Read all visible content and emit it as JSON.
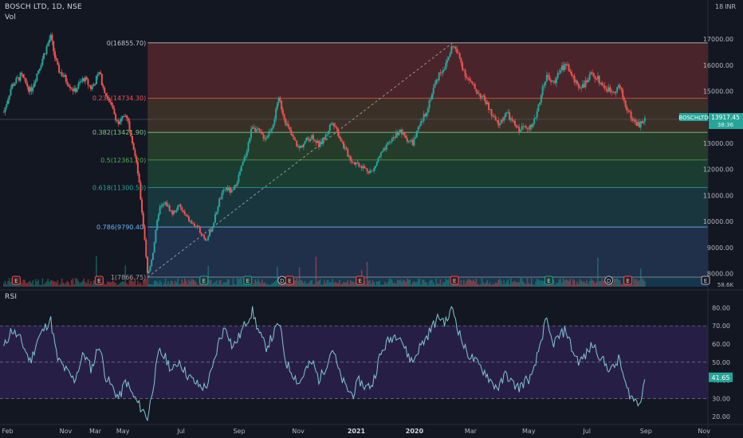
{
  "header": {
    "symbol": "BOSCH LTD, 1D, NSE",
    "vol_label": "Vol",
    "currency": "INR",
    "top_label": "18"
  },
  "rsi_label": "RSI",
  "colors": {
    "bg": "#131722",
    "up": "#26a69a",
    "down": "#ef5350",
    "rsi_line": "#7ec8d6",
    "rsi_band": "#2a1f4a",
    "grid_text": "#b2b5be"
  },
  "price_badge": {
    "symbol": "BOSCHLTD",
    "value": "13917.45",
    "timer": "38:36"
  },
  "rsi_badge": {
    "value": "41.65"
  },
  "volume_badge": "58.6K",
  "chart_data": [
    {
      "type": "candlestick",
      "title": "BOSCH LTD, 1D, NSE",
      "y_axis": {
        "ticks": [
          8000,
          9000,
          10000,
          11000,
          12000,
          13000,
          14000,
          15000,
          16000,
          17000
        ],
        "range": [
          7500,
          17950
        ]
      },
      "x_axis": {
        "ticks": [
          "Nov",
          "2020",
          "Feb",
          "Mar",
          "May",
          "Jul",
          "Sep",
          "Nov",
          "2021",
          "Mar",
          "May",
          "Jul",
          "Sep",
          "Nov"
        ]
      },
      "price_path": [
        [
          "2019-10-28",
          14200
        ],
        [
          "2019-11-05",
          15200
        ],
        [
          "2019-11-15",
          15600
        ],
        [
          "2019-11-25",
          15000
        ],
        [
          "2019-12-02",
          15700
        ],
        [
          "2019-12-09",
          16400
        ],
        [
          "2019-12-16",
          17100
        ],
        [
          "2019-12-23",
          15900
        ],
        [
          "2020-01-02",
          15400
        ],
        [
          "2020-01-10",
          15000
        ],
        [
          "2020-01-20",
          15500
        ],
        [
          "2020-01-28",
          15100
        ],
        [
          "2020-02-05",
          15700
        ],
        [
          "2020-02-12",
          14900
        ],
        [
          "2020-02-19",
          14300
        ],
        [
          "2020-02-26",
          13700
        ],
        [
          "2020-03-04",
          14200
        ],
        [
          "2020-03-10",
          13300
        ],
        [
          "2020-03-17",
          11800
        ],
        [
          "2020-03-24",
          9300
        ],
        [
          "2020-03-27",
          7900
        ],
        [
          "2020-04-01",
          8700
        ],
        [
          "2020-04-08",
          10500
        ],
        [
          "2020-04-15",
          10700
        ],
        [
          "2020-04-22",
          10300
        ],
        [
          "2020-04-29",
          10600
        ],
        [
          "2020-05-06",
          10200
        ],
        [
          "2020-05-13",
          9900
        ],
        [
          "2020-05-20",
          9700
        ],
        [
          "2020-05-27",
          9300
        ],
        [
          "2020-06-03",
          9800
        ],
        [
          "2020-06-10",
          10800
        ],
        [
          "2020-06-17",
          11300
        ],
        [
          "2020-06-24",
          11100
        ],
        [
          "2020-07-01",
          11800
        ],
        [
          "2020-07-08",
          12600
        ],
        [
          "2020-07-15",
          13700
        ],
        [
          "2020-07-22",
          13400
        ],
        [
          "2020-07-29",
          13200
        ],
        [
          "2020-08-05",
          13700
        ],
        [
          "2020-08-12",
          14700
        ],
        [
          "2020-08-19",
          13800
        ],
        [
          "2020-08-26",
          13200
        ],
        [
          "2020-09-02",
          12800
        ],
        [
          "2020-09-09",
          13100
        ],
        [
          "2020-09-16",
          13300
        ],
        [
          "2020-09-23",
          12900
        ],
        [
          "2020-09-30",
          13300
        ],
        [
          "2020-10-07",
          13900
        ],
        [
          "2020-10-14",
          13300
        ],
        [
          "2020-10-21",
          12700
        ],
        [
          "2020-10-28",
          12300
        ],
        [
          "2020-11-04",
          12200
        ],
        [
          "2020-11-11",
          12000
        ],
        [
          "2020-11-18",
          11900
        ],
        [
          "2020-11-25",
          12500
        ],
        [
          "2020-12-02",
          12800
        ],
        [
          "2020-12-09",
          13200
        ],
        [
          "2020-12-16",
          13500
        ],
        [
          "2020-12-23",
          13200
        ],
        [
          "2020-12-30",
          13000
        ],
        [
          "2021-01-06",
          13600
        ],
        [
          "2021-01-13",
          14200
        ],
        [
          "2021-01-20",
          15000
        ],
        [
          "2021-01-27",
          15700
        ],
        [
          "2021-02-03",
          16000
        ],
        [
          "2021-02-10",
          16800
        ],
        [
          "2021-02-17",
          16300
        ],
        [
          "2021-02-24",
          15600
        ],
        [
          "2021-03-03",
          15200
        ],
        [
          "2021-03-10",
          14900
        ],
        [
          "2021-03-17",
          14600
        ],
        [
          "2021-03-24",
          14000
        ],
        [
          "2021-03-31",
          13700
        ],
        [
          "2021-04-07",
          14200
        ],
        [
          "2021-04-14",
          13800
        ],
        [
          "2021-04-21",
          13500
        ],
        [
          "2021-04-28",
          13700
        ],
        [
          "2021-05-05",
          13600
        ],
        [
          "2021-05-12",
          14600
        ],
        [
          "2021-05-19",
          15600
        ],
        [
          "2021-05-26",
          15300
        ],
        [
          "2021-06-02",
          15700
        ],
        [
          "2021-06-09",
          16100
        ],
        [
          "2021-06-16",
          15500
        ],
        [
          "2021-06-23",
          15200
        ],
        [
          "2021-06-30",
          15300
        ],
        [
          "2021-07-07",
          15700
        ],
        [
          "2021-07-14",
          15400
        ],
        [
          "2021-07-21",
          15100
        ],
        [
          "2021-07-28",
          15000
        ],
        [
          "2021-08-04",
          15200
        ],
        [
          "2021-08-11",
          14400
        ],
        [
          "2021-08-18",
          13900
        ],
        [
          "2021-08-25",
          13700
        ],
        [
          "2021-08-31",
          13917
        ]
      ],
      "fibonacci": [
        {
          "label": "0(16855.70)",
          "value": 16855.7
        },
        {
          "label": "0.236(14734.30)",
          "value": 14734.3
        },
        {
          "label": "0.382(13421.90)",
          "value": 13421.9
        },
        {
          "label": "0.5(12361.20)",
          "value": 12361.2
        },
        {
          "label": "0.618(11300.50)",
          "value": 11300.5
        },
        {
          "label": "0.786(9790.40)",
          "value": 9790.4
        },
        {
          "label": "1(7866.75)",
          "value": 7866.75
        }
      ],
      "trend_line": {
        "from": [
          "2020-03-27",
          7866.75
        ],
        "to": [
          "2021-02-10",
          16855.7
        ]
      },
      "event_markers": [
        {
          "date": "2019-11-10",
          "kind": "E"
        },
        {
          "date": "2020-02-05",
          "kind": "E"
        },
        {
          "date": "2020-05-25",
          "kind": "E"
        },
        {
          "date": "2020-07-10",
          "kind": "E"
        },
        {
          "date": "2020-08-15",
          "kind": "D"
        },
        {
          "date": "2020-08-23",
          "kind": "E"
        },
        {
          "date": "2020-11-05",
          "kind": "E"
        },
        {
          "date": "2021-02-12",
          "kind": "E"
        },
        {
          "date": "2021-05-22",
          "kind": "E"
        },
        {
          "date": "2021-07-24",
          "kind": "D"
        },
        {
          "date": "2021-08-13",
          "kind": "E"
        }
      ],
      "last_price": 13917.45
    },
    {
      "type": "line",
      "title": "RSI",
      "y_axis": {
        "ticks": [
          20,
          30,
          40,
          50,
          60,
          70,
          80
        ],
        "range": [
          17,
          85
        ]
      },
      "band": [
        30,
        70
      ],
      "rsi_path": [
        [
          "2019-10-28",
          58
        ],
        [
          "2019-11-05",
          68
        ],
        [
          "2019-11-15",
          62
        ],
        [
          "2019-11-25",
          50
        ],
        [
          "2019-12-02",
          62
        ],
        [
          "2019-12-09",
          68
        ],
        [
          "2019-12-16",
          74
        ],
        [
          "2019-12-23",
          52
        ],
        [
          "2020-01-02",
          45
        ],
        [
          "2020-01-10",
          40
        ],
        [
          "2020-01-20",
          55
        ],
        [
          "2020-01-28",
          46
        ],
        [
          "2020-02-05",
          60
        ],
        [
          "2020-02-12",
          42
        ],
        [
          "2020-02-19",
          36
        ],
        [
          "2020-02-26",
          30
        ],
        [
          "2020-03-04",
          40
        ],
        [
          "2020-03-10",
          33
        ],
        [
          "2020-03-17",
          27
        ],
        [
          "2020-03-24",
          22
        ],
        [
          "2020-03-27",
          19
        ],
        [
          "2020-04-01",
          35
        ],
        [
          "2020-04-08",
          56
        ],
        [
          "2020-04-15",
          52
        ],
        [
          "2020-04-22",
          45
        ],
        [
          "2020-04-29",
          51
        ],
        [
          "2020-05-06",
          44
        ],
        [
          "2020-05-13",
          40
        ],
        [
          "2020-05-20",
          37
        ],
        [
          "2020-05-27",
          36
        ],
        [
          "2020-06-03",
          46
        ],
        [
          "2020-06-10",
          62
        ],
        [
          "2020-06-17",
          70
        ],
        [
          "2020-06-24",
          58
        ],
        [
          "2020-07-01",
          64
        ],
        [
          "2020-07-08",
          72
        ],
        [
          "2020-07-15",
          78
        ],
        [
          "2020-07-22",
          66
        ],
        [
          "2020-07-29",
          58
        ],
        [
          "2020-08-05",
          64
        ],
        [
          "2020-08-12",
          72
        ],
        [
          "2020-08-19",
          50
        ],
        [
          "2020-08-26",
          44
        ],
        [
          "2020-09-02",
          38
        ],
        [
          "2020-09-09",
          46
        ],
        [
          "2020-09-16",
          50
        ],
        [
          "2020-09-23",
          40
        ],
        [
          "2020-09-30",
          48
        ],
        [
          "2020-10-07",
          58
        ],
        [
          "2020-10-14",
          44
        ],
        [
          "2020-10-21",
          36
        ],
        [
          "2020-10-28",
          32
        ],
        [
          "2020-11-04",
          40
        ],
        [
          "2020-11-11",
          36
        ],
        [
          "2020-11-18",
          38
        ],
        [
          "2020-11-25",
          52
        ],
        [
          "2020-12-02",
          60
        ],
        [
          "2020-12-09",
          64
        ],
        [
          "2020-12-16",
          66
        ],
        [
          "2020-12-23",
          56
        ],
        [
          "2020-12-30",
          50
        ],
        [
          "2021-01-06",
          58
        ],
        [
          "2021-01-13",
          63
        ],
        [
          "2021-01-20",
          70
        ],
        [
          "2021-01-27",
          75
        ],
        [
          "2021-02-03",
          72
        ],
        [
          "2021-02-10",
          80
        ],
        [
          "2021-02-17",
          66
        ],
        [
          "2021-02-24",
          56
        ],
        [
          "2021-03-03",
          52
        ],
        [
          "2021-03-10",
          48
        ],
        [
          "2021-03-17",
          44
        ],
        [
          "2021-03-24",
          38
        ],
        [
          "2021-03-31",
          36
        ],
        [
          "2021-04-07",
          44
        ],
        [
          "2021-04-14",
          38
        ],
        [
          "2021-04-21",
          36
        ],
        [
          "2021-04-28",
          40
        ],
        [
          "2021-05-05",
          42
        ],
        [
          "2021-05-12",
          58
        ],
        [
          "2021-05-19",
          73
        ],
        [
          "2021-05-26",
          60
        ],
        [
          "2021-06-02",
          64
        ],
        [
          "2021-06-09",
          68
        ],
        [
          "2021-06-16",
          56
        ],
        [
          "2021-06-23",
          50
        ],
        [
          "2021-06-30",
          54
        ],
        [
          "2021-07-07",
          60
        ],
        [
          "2021-07-14",
          54
        ],
        [
          "2021-07-21",
          48
        ],
        [
          "2021-07-28",
          46
        ],
        [
          "2021-08-04",
          52
        ],
        [
          "2021-08-11",
          36
        ],
        [
          "2021-08-18",
          30
        ],
        [
          "2021-08-25",
          27
        ],
        [
          "2021-08-31",
          41.65
        ]
      ]
    }
  ]
}
